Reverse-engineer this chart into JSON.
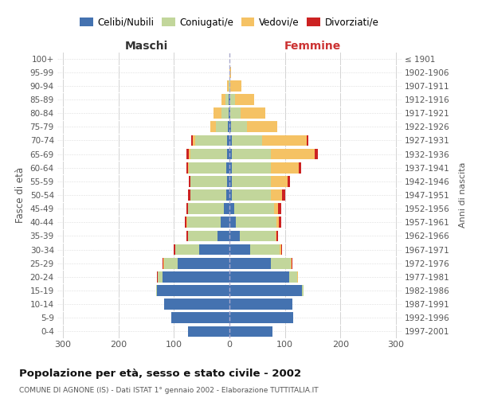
{
  "age_groups": [
    "0-4",
    "5-9",
    "10-14",
    "15-19",
    "20-24",
    "25-29",
    "30-34",
    "35-39",
    "40-44",
    "45-49",
    "50-54",
    "55-59",
    "60-64",
    "65-69",
    "70-74",
    "75-79",
    "80-84",
    "85-89",
    "90-94",
    "95-99",
    "100+"
  ],
  "birth_years": [
    "1997-2001",
    "1992-1996",
    "1987-1991",
    "1982-1986",
    "1977-1981",
    "1972-1976",
    "1967-1971",
    "1962-1966",
    "1957-1961",
    "1952-1956",
    "1947-1951",
    "1942-1946",
    "1937-1941",
    "1932-1936",
    "1927-1931",
    "1922-1926",
    "1917-1921",
    "1912-1916",
    "1907-1911",
    "1902-1906",
    "≤ 1901"
  ],
  "color_celibe": "#4472b0",
  "color_coniugato": "#c2d69b",
  "color_vedovo": "#f5c264",
  "color_divorziato": "#cc2222",
  "maschi_celibi": [
    75,
    105,
    118,
    130,
    120,
    93,
    55,
    22,
    16,
    10,
    6,
    5,
    6,
    5,
    5,
    3,
    2,
    1,
    0,
    0,
    0
  ],
  "maschi_coniugati": [
    0,
    0,
    0,
    2,
    9,
    24,
    43,
    53,
    60,
    65,
    65,
    66,
    67,
    65,
    57,
    22,
    12,
    6,
    2,
    0,
    0
  ],
  "maschi_vedovi": [
    0,
    0,
    0,
    0,
    0,
    2,
    0,
    0,
    2,
    0,
    0,
    0,
    2,
    3,
    4,
    10,
    15,
    8,
    2,
    0,
    0
  ],
  "maschi_divorziati": [
    0,
    0,
    0,
    0,
    1,
    1,
    3,
    2,
    3,
    3,
    3,
    2,
    3,
    4,
    3,
    0,
    0,
    0,
    0,
    0,
    0
  ],
  "femmine_nubili": [
    78,
    115,
    113,
    130,
    108,
    75,
    38,
    18,
    12,
    8,
    5,
    5,
    5,
    4,
    4,
    3,
    2,
    2,
    0,
    0,
    0
  ],
  "femmine_coniugate": [
    0,
    0,
    1,
    4,
    14,
    35,
    53,
    65,
    72,
    72,
    70,
    70,
    70,
    70,
    55,
    28,
    18,
    8,
    2,
    0,
    0
  ],
  "femmine_vedove": [
    0,
    0,
    0,
    0,
    2,
    2,
    2,
    2,
    5,
    8,
    20,
    30,
    50,
    80,
    80,
    55,
    45,
    35,
    20,
    3,
    0
  ],
  "femmine_divorziate": [
    0,
    0,
    0,
    0,
    0,
    2,
    2,
    2,
    5,
    5,
    5,
    4,
    4,
    5,
    3,
    0,
    0,
    0,
    0,
    0,
    0
  ],
  "xlim": 310,
  "title": "Popolazione per età, sesso e stato civile - 2002",
  "subtitle": "COMUNE DI AGNONE (IS) - Dati ISTAT 1° gennaio 2002 - Elaborazione TUTTITALIA.IT",
  "ylabel_left": "Fasce di età",
  "ylabel_right": "Anni di nascita",
  "header_maschi": "Maschi",
  "header_femmine": "Femmine"
}
